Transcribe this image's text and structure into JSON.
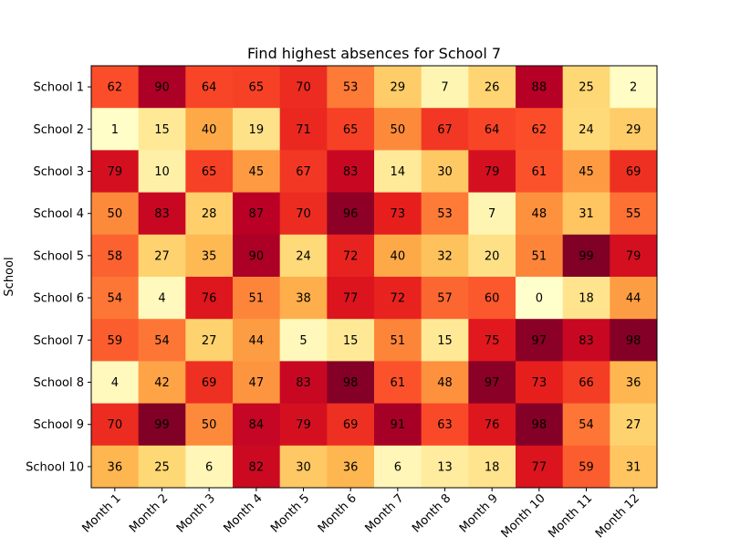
{
  "chart_data": {
    "type": "heatmap",
    "title": "Find highest absences for School 7",
    "xlabel": "",
    "ylabel": "School",
    "rows": [
      "School 1",
      "School 2",
      "School 3",
      "School 4",
      "School 5",
      "School 6",
      "School 7",
      "School 8",
      "School 9",
      "School 10"
    ],
    "columns": [
      "Month 1",
      "Month 2",
      "Month 3",
      "Month 4",
      "Month 5",
      "Month 6",
      "Month 7",
      "Month 8",
      "Month 9",
      "Month 10",
      "Month 11",
      "Month 12"
    ],
    "values": [
      [
        62,
        90,
        64,
        65,
        70,
        53,
        29,
        7,
        26,
        88,
        25,
        2
      ],
      [
        1,
        15,
        40,
        19,
        71,
        65,
        50,
        67,
        64,
        62,
        24,
        29
      ],
      [
        79,
        10,
        65,
        45,
        67,
        83,
        14,
        30,
        79,
        61,
        45,
        69
      ],
      [
        50,
        83,
        28,
        87,
        70,
        96,
        73,
        53,
        7,
        48,
        31,
        55
      ],
      [
        58,
        27,
        35,
        90,
        24,
        72,
        40,
        32,
        20,
        51,
        99,
        79
      ],
      [
        54,
        4,
        76,
        51,
        38,
        77,
        72,
        57,
        60,
        0,
        18,
        44
      ],
      [
        59,
        54,
        27,
        44,
        5,
        15,
        51,
        15,
        75,
        97,
        83,
        98
      ],
      [
        4,
        42,
        69,
        47,
        83,
        98,
        61,
        48,
        97,
        73,
        66,
        36
      ],
      [
        70,
        99,
        50,
        84,
        79,
        69,
        91,
        63,
        76,
        98,
        54,
        27
      ],
      [
        36,
        25,
        6,
        82,
        30,
        36,
        6,
        13,
        18,
        77,
        59,
        31
      ]
    ],
    "colormap": "YlOrRd",
    "value_range": [
      0,
      99
    ],
    "x_tick_rotation": 45,
    "grid": false
  }
}
